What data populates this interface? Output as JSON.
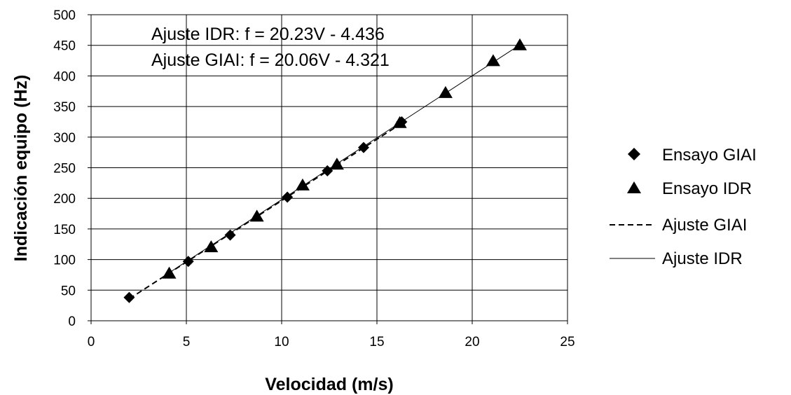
{
  "chart_data": {
    "type": "scatter",
    "xlabel": "Velocidad (m/s)",
    "ylabel": "Indicación equipo (Hz)",
    "xlim": [
      0,
      25
    ],
    "ylim": [
      0,
      500
    ],
    "x_ticks": [
      0,
      5,
      10,
      15,
      20,
      25
    ],
    "y_ticks": [
      0,
      50,
      100,
      150,
      200,
      250,
      300,
      350,
      400,
      450,
      500
    ],
    "grid": true,
    "legend_position": "right",
    "annotations": [
      "Ajuste IDR: f = 20.23V - 4.436",
      "Ajuste GIAI: f = 20.06V - 4.321"
    ],
    "series": [
      {
        "name": "Ensayo GIAI",
        "marker": "diamond",
        "points": [
          {
            "x": 2.0,
            "y": 38
          },
          {
            "x": 5.1,
            "y": 97
          },
          {
            "x": 7.3,
            "y": 140
          },
          {
            "x": 10.3,
            "y": 202
          },
          {
            "x": 12.4,
            "y": 245
          },
          {
            "x": 14.3,
            "y": 283
          },
          {
            "x": 16.3,
            "y": 325
          }
        ]
      },
      {
        "name": "Ensayo IDR",
        "marker": "triangle",
        "points": [
          {
            "x": 4.1,
            "y": 77
          },
          {
            "x": 6.3,
            "y": 120
          },
          {
            "x": 8.7,
            "y": 170
          },
          {
            "x": 11.1,
            "y": 221
          },
          {
            "x": 12.9,
            "y": 255
          },
          {
            "x": 16.2,
            "y": 323
          },
          {
            "x": 18.6,
            "y": 372
          },
          {
            "x": 21.1,
            "y": 424
          },
          {
            "x": 22.5,
            "y": 450
          }
        ]
      },
      {
        "name": "Ajuste GIAI",
        "line_style": "dashed",
        "slope": 20.06,
        "intercept": -4.321,
        "x_range": [
          2.0,
          16.3
        ]
      },
      {
        "name": "Ajuste IDR",
        "line_style": "solid",
        "slope": 20.23,
        "intercept": -4.436,
        "x_range": [
          4.1,
          22.5
        ]
      }
    ]
  }
}
